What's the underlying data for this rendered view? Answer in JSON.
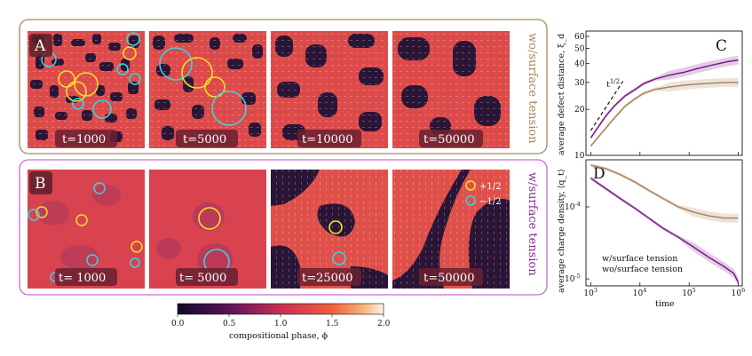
{
  "row_a": {
    "label": "A",
    "side_label": "wo/surface tension",
    "times": [
      "t=1000",
      "t=5000",
      "t=10000",
      "t=50000"
    ],
    "border_color": "#a9865c",
    "side_color": "#a9865c"
  },
  "row_b": {
    "label": "B",
    "side_label": "w/surface tension",
    "times": [
      "t= 1000",
      "t= 5000",
      "t=25000",
      "t=50000"
    ],
    "border_color": "#c86ad6",
    "side_color": "#8b2a9b"
  },
  "legend_defects": {
    "plus": "+1/2",
    "minus": "−1/2",
    "plus_color": "#f2e02a",
    "minus_color": "#3ad3e0"
  },
  "colorbar": {
    "label": "compositional phase, ϕ",
    "ticks": [
      "0.0",
      "0.5",
      "1.0",
      "1.5",
      "2.0"
    ]
  },
  "chart_data": [
    {
      "type": "line",
      "panel": "C",
      "title": "",
      "xlabel": "",
      "ylabel": "average defect distance, ξ_d",
      "xscale": "log",
      "yscale": "log",
      "xlim": [
        800,
        1200000
      ],
      "ylim": [
        10,
        65
      ],
      "yticks": [
        "10",
        "20",
        "30",
        "40",
        "50",
        "60"
      ],
      "annotation": "t^{1/2}",
      "series": [
        {
          "name": "w/surface tension",
          "color": "#7a1a8a",
          "x": [
            1000,
            2000,
            3000,
            5000,
            8000,
            12000,
            20000,
            40000,
            80000,
            150000,
            300000,
            600000,
            1000000
          ],
          "y": [
            13,
            18,
            21,
            24.5,
            27,
            29.5,
            31.5,
            33.5,
            35,
            37,
            39,
            41,
            42
          ]
        },
        {
          "name": "wo/surface tension",
          "color": "#a9865c",
          "x": [
            1000,
            2000,
            3000,
            5000,
            8000,
            12000,
            20000,
            40000,
            80000,
            150000,
            300000,
            600000,
            1000000
          ],
          "y": [
            11.5,
            15,
            17.5,
            21,
            23.5,
            25.5,
            27,
            28,
            28.8,
            29.3,
            29.7,
            30,
            30
          ]
        },
        {
          "name": "t^{1/2} guide",
          "color": "#111111",
          "style": "dashed",
          "x": [
            1000,
            4500
          ],
          "y": [
            14.5,
            30.5
          ]
        }
      ]
    },
    {
      "type": "line",
      "panel": "D",
      "title": "",
      "xlabel": "time",
      "ylabel": "average charge density, ⟨q_t⟩",
      "xscale": "log",
      "yscale": "log",
      "xlim": [
        800,
        1200000
      ],
      "ylim": [
        8e-06,
        0.00045
      ],
      "xticks": [
        "10^3",
        "10^4",
        "10^5",
        "10^6"
      ],
      "yticks": [
        "10^-5",
        "10^-4"
      ],
      "series": [
        {
          "name": "w/surface tension",
          "color": "#7a1a8a",
          "x": [
            1000,
            2000,
            4000,
            8000,
            15000,
            30000,
            60000,
            120000,
            250000,
            500000,
            800000,
            1000000
          ],
          "y": [
            0.00025,
            0.00018,
            0.00013,
            9.5e-05,
            7e-05,
            5e-05,
            3.8e-05,
            2.8e-05,
            2e-05,
            1.5e-05,
            1.2e-05,
            9e-06
          ]
        },
        {
          "name": "wo/surface tension",
          "color": "#a9865c",
          "x": [
            1000,
            2000,
            4000,
            8000,
            15000,
            30000,
            60000,
            120000,
            250000,
            500000,
            1000000
          ],
          "y": [
            0.00038,
            0.00034,
            0.00028,
            0.00022,
            0.00017,
            0.00013,
            0.0001,
            8.5e-05,
            7.5e-05,
            7e-05,
            7e-05
          ]
        }
      ],
      "legend": [
        "w/surface tension",
        "wo/surface tension"
      ]
    }
  ]
}
